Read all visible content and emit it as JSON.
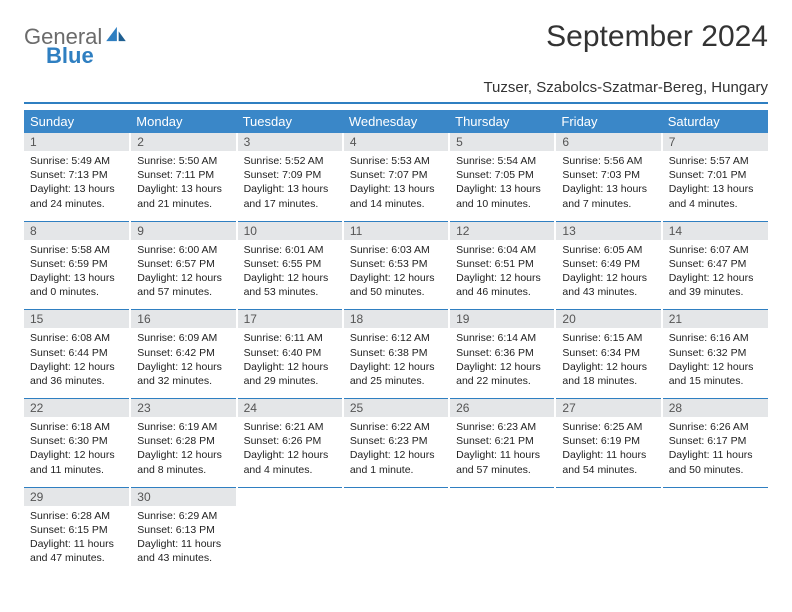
{
  "logo": {
    "general": "General",
    "blue": "Blue"
  },
  "title": "September 2024",
  "location": "Tuzser, Szabolcs-Szatmar-Bereg, Hungary",
  "colors": {
    "header_bg": "#3a87c8",
    "header_text": "#ffffff",
    "daynum_bg": "#e4e6e8",
    "row_divider": "#2f7fc1",
    "logo_gray": "#6b6b6b",
    "logo_blue": "#2f7fc1"
  },
  "weekdays": [
    "Sunday",
    "Monday",
    "Tuesday",
    "Wednesday",
    "Thursday",
    "Friday",
    "Saturday"
  ],
  "weeks": [
    [
      {
        "n": "1",
        "sr": "5:49 AM",
        "ss": "7:13 PM",
        "dl": "13 hours and 24 minutes."
      },
      {
        "n": "2",
        "sr": "5:50 AM",
        "ss": "7:11 PM",
        "dl": "13 hours and 21 minutes."
      },
      {
        "n": "3",
        "sr": "5:52 AM",
        "ss": "7:09 PM",
        "dl": "13 hours and 17 minutes."
      },
      {
        "n": "4",
        "sr": "5:53 AM",
        "ss": "7:07 PM",
        "dl": "13 hours and 14 minutes."
      },
      {
        "n": "5",
        "sr": "5:54 AM",
        "ss": "7:05 PM",
        "dl": "13 hours and 10 minutes."
      },
      {
        "n": "6",
        "sr": "5:56 AM",
        "ss": "7:03 PM",
        "dl": "13 hours and 7 minutes."
      },
      {
        "n": "7",
        "sr": "5:57 AM",
        "ss": "7:01 PM",
        "dl": "13 hours and 4 minutes."
      }
    ],
    [
      {
        "n": "8",
        "sr": "5:58 AM",
        "ss": "6:59 PM",
        "dl": "13 hours and 0 minutes."
      },
      {
        "n": "9",
        "sr": "6:00 AM",
        "ss": "6:57 PM",
        "dl": "12 hours and 57 minutes."
      },
      {
        "n": "10",
        "sr": "6:01 AM",
        "ss": "6:55 PM",
        "dl": "12 hours and 53 minutes."
      },
      {
        "n": "11",
        "sr": "6:03 AM",
        "ss": "6:53 PM",
        "dl": "12 hours and 50 minutes."
      },
      {
        "n": "12",
        "sr": "6:04 AM",
        "ss": "6:51 PM",
        "dl": "12 hours and 46 minutes."
      },
      {
        "n": "13",
        "sr": "6:05 AM",
        "ss": "6:49 PM",
        "dl": "12 hours and 43 minutes."
      },
      {
        "n": "14",
        "sr": "6:07 AM",
        "ss": "6:47 PM",
        "dl": "12 hours and 39 minutes."
      }
    ],
    [
      {
        "n": "15",
        "sr": "6:08 AM",
        "ss": "6:44 PM",
        "dl": "12 hours and 36 minutes."
      },
      {
        "n": "16",
        "sr": "6:09 AM",
        "ss": "6:42 PM",
        "dl": "12 hours and 32 minutes."
      },
      {
        "n": "17",
        "sr": "6:11 AM",
        "ss": "6:40 PM",
        "dl": "12 hours and 29 minutes."
      },
      {
        "n": "18",
        "sr": "6:12 AM",
        "ss": "6:38 PM",
        "dl": "12 hours and 25 minutes."
      },
      {
        "n": "19",
        "sr": "6:14 AM",
        "ss": "6:36 PM",
        "dl": "12 hours and 22 minutes."
      },
      {
        "n": "20",
        "sr": "6:15 AM",
        "ss": "6:34 PM",
        "dl": "12 hours and 18 minutes."
      },
      {
        "n": "21",
        "sr": "6:16 AM",
        "ss": "6:32 PM",
        "dl": "12 hours and 15 minutes."
      }
    ],
    [
      {
        "n": "22",
        "sr": "6:18 AM",
        "ss": "6:30 PM",
        "dl": "12 hours and 11 minutes."
      },
      {
        "n": "23",
        "sr": "6:19 AM",
        "ss": "6:28 PM",
        "dl": "12 hours and 8 minutes."
      },
      {
        "n": "24",
        "sr": "6:21 AM",
        "ss": "6:26 PM",
        "dl": "12 hours and 4 minutes."
      },
      {
        "n": "25",
        "sr": "6:22 AM",
        "ss": "6:23 PM",
        "dl": "12 hours and 1 minute."
      },
      {
        "n": "26",
        "sr": "6:23 AM",
        "ss": "6:21 PM",
        "dl": "11 hours and 57 minutes."
      },
      {
        "n": "27",
        "sr": "6:25 AM",
        "ss": "6:19 PM",
        "dl": "11 hours and 54 minutes."
      },
      {
        "n": "28",
        "sr": "6:26 AM",
        "ss": "6:17 PM",
        "dl": "11 hours and 50 minutes."
      }
    ],
    [
      {
        "n": "29",
        "sr": "6:28 AM",
        "ss": "6:15 PM",
        "dl": "11 hours and 47 minutes."
      },
      {
        "n": "30",
        "sr": "6:29 AM",
        "ss": "6:13 PM",
        "dl": "11 hours and 43 minutes."
      },
      null,
      null,
      null,
      null,
      null
    ]
  ],
  "labels": {
    "sunrise": "Sunrise:",
    "sunset": "Sunset:",
    "daylight": "Daylight:"
  }
}
